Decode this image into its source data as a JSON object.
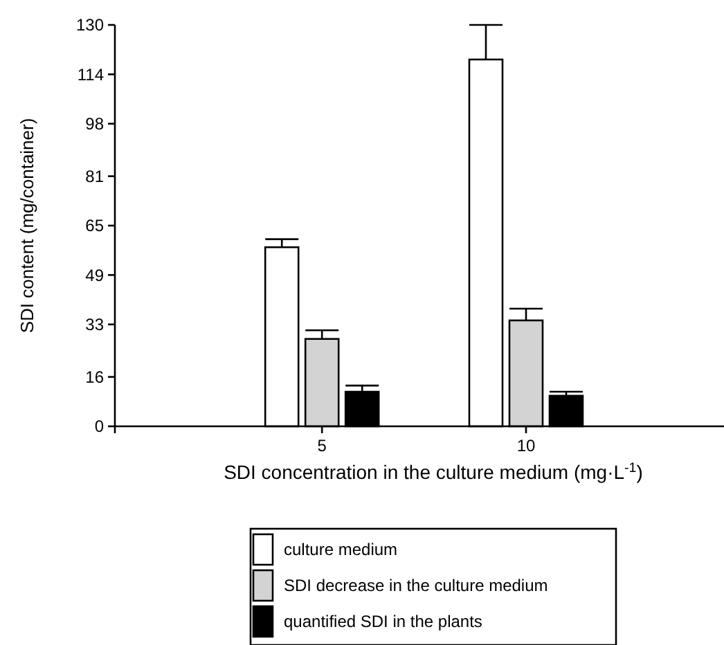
{
  "chart_data": {
    "type": "bar",
    "xlabel": "SDI concentration in the culture medium (mg·L$^{-1}$)",
    "ylabel": "SDI content (mg/container)",
    "categories": [
      "5",
      "10"
    ],
    "series": [
      {
        "name": "culture medium",
        "color": "#ffffff",
        "values": [
          58,
          118.8
        ],
        "errors": [
          [
            58,
            60.6
          ],
          [
            118.8,
            130
          ]
        ]
      },
      {
        "name": "SDI decrease in the culture medium",
        "color": "#d3d3d3",
        "values": [
          28.3,
          34.3
        ],
        "errors": [
          [
            28.3,
            31.1
          ],
          [
            34.3,
            38.1
          ]
        ]
      },
      {
        "name": "quantified SDI in the plants",
        "color": "#000000",
        "values": [
          11.2,
          9.9
        ],
        "errors": [
          [
            11.2,
            13.2
          ],
          [
            9.9,
            11.2
          ]
        ]
      }
    ],
    "ylim": [
      0,
      130
    ],
    "yticks": [
      0,
      16,
      33,
      49,
      65,
      81,
      98,
      114,
      130
    ],
    "grid": false,
    "legend": "bottom"
  }
}
